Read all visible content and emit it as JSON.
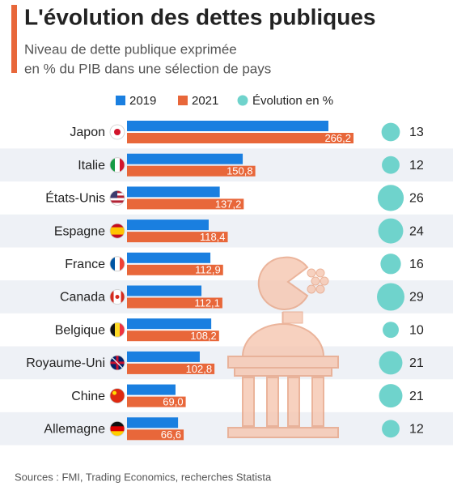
{
  "chart_data": {
    "type": "bar",
    "title": "L'évolution des dettes publiques",
    "subtitle": [
      "Niveau de dette publique exprimée",
      "en % du PIB dans une sélection de pays"
    ],
    "categories": [
      "Japon",
      "Italie",
      "États-Unis",
      "Espagne",
      "France",
      "Canada",
      "Belgique",
      "Royaume-Uni",
      "Chine",
      "Allemagne"
    ],
    "series": [
      {
        "name": "2019",
        "color": "#1a7fe0",
        "values": [
          236.7,
          136,
          109,
          96,
          98,
          87.5,
          99,
          85.5,
          57,
          60
        ]
      },
      {
        "name": "2021",
        "color": "#e8673a",
        "values": [
          266.2,
          150.8,
          137.2,
          118.4,
          112.9,
          112.1,
          108.2,
          102.8,
          69.0,
          66.6
        ],
        "value_labels": [
          "266,2",
          "150,8",
          "137,2",
          "118,4",
          "112,9",
          "112,1",
          "108,2",
          "102,8",
          "69,0",
          "66,6"
        ]
      }
    ],
    "bubbles": {
      "name": "Évolution en %",
      "color": "#6fd3cc",
      "values": [
        13,
        12,
        26,
        24,
        16,
        29,
        10,
        21,
        21,
        12
      ]
    },
    "source": "Sources : FMI, Trading Economics, recherches Statista"
  }
}
